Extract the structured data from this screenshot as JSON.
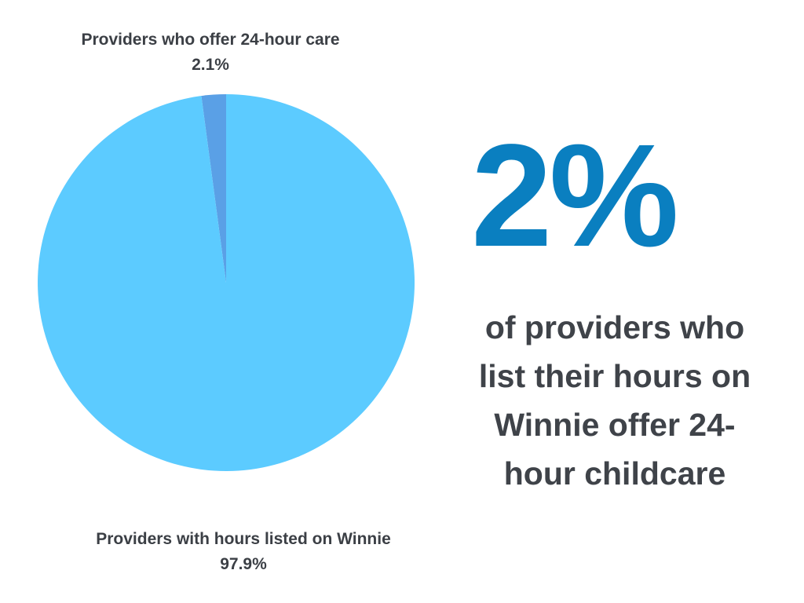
{
  "chart_data": {
    "type": "pie",
    "slices": [
      {
        "label": "Providers who offer 24-hour care",
        "value": 2.1,
        "value_label": "2.1%",
        "color": "#5aa0e6"
      },
      {
        "label": "Providers with hours listed on Winnie",
        "value": 97.9,
        "value_label": "97.9%",
        "color": "#5ccbff"
      }
    ],
    "start_angle_deg": 0,
    "direction": "counterclockwise",
    "legend": "none"
  },
  "highlight": {
    "stat": "2%",
    "stat_color": "#0a7fc0",
    "caption": "of providers who list their hours on Winnie offer 24-hour childcare"
  }
}
